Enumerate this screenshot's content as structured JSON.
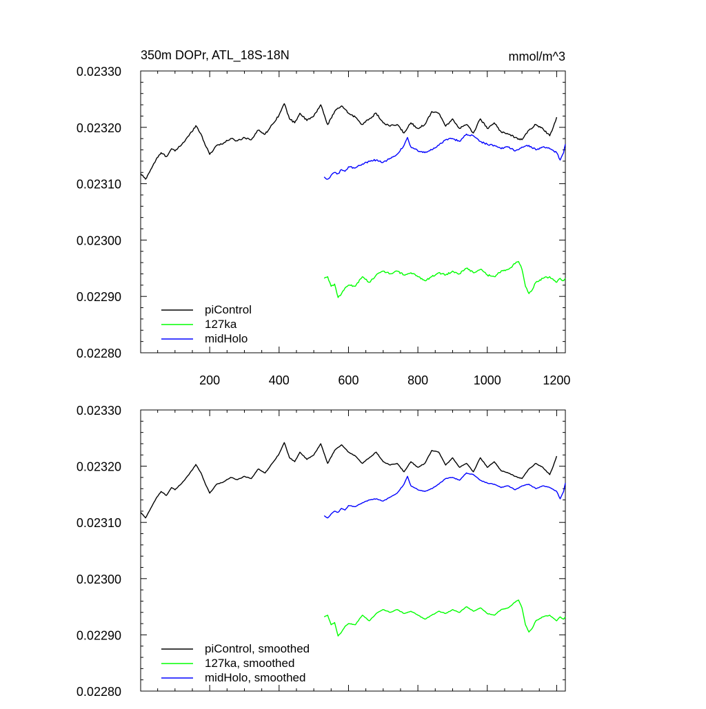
{
  "chart_data": [
    {
      "type": "line",
      "title": "350m DOPr, ATL_18S-18N",
      "units": "mmol/m^3",
      "xlabel": "",
      "ylabel": "",
      "xlim": [
        1,
        1225
      ],
      "ylim": [
        0.0228,
        0.0233
      ],
      "x_ticks": [
        200,
        400,
        600,
        800,
        1000,
        1200
      ],
      "x_tick_labels": [
        "200",
        "400",
        "600",
        "800",
        "1000",
        "1200"
      ],
      "y_ticks": [
        0.0228,
        0.0229,
        0.023,
        0.0231,
        0.0232,
        0.0233
      ],
      "y_tick_labels": [
        "0.02280",
        "0.02290",
        "0.02300",
        "0.02310",
        "0.02320",
        "0.02330"
      ],
      "legend_position": "bottom-left",
      "series": [
        {
          "name": "piControl",
          "color": "#000000",
          "x": [
            1,
            15,
            30,
            45,
            60,
            75,
            90,
            100,
            120,
            140,
            160,
            175,
            190,
            200,
            220,
            240,
            260,
            280,
            300,
            320,
            340,
            360,
            380,
            400,
            415,
            430,
            445,
            460,
            480,
            500,
            520,
            540,
            560,
            580,
            600,
            620,
            640,
            660,
            680,
            700,
            720,
            740,
            760,
            780,
            800,
            820,
            840,
            860,
            880,
            900,
            920,
            940,
            960,
            980,
            1000,
            1020,
            1040,
            1060,
            1080,
            1100,
            1120,
            1140,
            1160,
            1180,
            1190,
            1200
          ],
          "values": [
            0.023118,
            0.023108,
            0.023125,
            0.023142,
            0.023155,
            0.023148,
            0.023162,
            0.023158,
            0.02317,
            0.023185,
            0.023203,
            0.023188,
            0.023165,
            0.023152,
            0.023168,
            0.023172,
            0.02318,
            0.023176,
            0.023182,
            0.023178,
            0.023195,
            0.023188,
            0.023205,
            0.023222,
            0.023242,
            0.023215,
            0.023208,
            0.023225,
            0.023212,
            0.02322,
            0.02324,
            0.023205,
            0.023228,
            0.023238,
            0.023225,
            0.023218,
            0.023205,
            0.023215,
            0.023225,
            0.023208,
            0.023202,
            0.023205,
            0.02319,
            0.023208,
            0.023198,
            0.023205,
            0.023228,
            0.023225,
            0.023202,
            0.023215,
            0.023198,
            0.023205,
            0.02319,
            0.023215,
            0.023198,
            0.023208,
            0.023192,
            0.023188,
            0.023182,
            0.023178,
            0.023195,
            0.023205,
            0.023198,
            0.023185,
            0.0232,
            0.023218
          ]
        },
        {
          "name": "127ka",
          "color": "#00ff00",
          "x": [
            530,
            540,
            550,
            560,
            570,
            580,
            590,
            600,
            620,
            640,
            660,
            680,
            700,
            720,
            740,
            760,
            780,
            800,
            820,
            840,
            860,
            880,
            900,
            920,
            940,
            960,
            980,
            1000,
            1020,
            1040,
            1060,
            1080,
            1090,
            1100,
            1110,
            1120,
            1130,
            1140,
            1160,
            1180,
            1200,
            1210,
            1220,
            1225
          ],
          "values": [
            0.022932,
            0.022935,
            0.022918,
            0.022922,
            0.022898,
            0.022905,
            0.022915,
            0.02292,
            0.022918,
            0.022935,
            0.022925,
            0.022938,
            0.022945,
            0.02294,
            0.022945,
            0.022938,
            0.022942,
            0.022935,
            0.022928,
            0.022935,
            0.022942,
            0.022938,
            0.022945,
            0.02294,
            0.02295,
            0.022942,
            0.022948,
            0.022938,
            0.022935,
            0.022945,
            0.022948,
            0.022958,
            0.022962,
            0.022948,
            0.022918,
            0.022905,
            0.022912,
            0.022925,
            0.022932,
            0.022935,
            0.022925,
            0.022932,
            0.022928,
            0.022932
          ]
        },
        {
          "name": "midHolo",
          "color": "#0000ff",
          "x": [
            530,
            540,
            550,
            560,
            570,
            580,
            590,
            600,
            620,
            640,
            660,
            680,
            700,
            720,
            740,
            760,
            770,
            780,
            800,
            820,
            840,
            860,
            880,
            900,
            920,
            940,
            960,
            980,
            1000,
            1020,
            1040,
            1060,
            1080,
            1100,
            1120,
            1140,
            1160,
            1180,
            1200,
            1210,
            1220,
            1225
          ],
          "values": [
            0.023112,
            0.023108,
            0.023115,
            0.02312,
            0.023118,
            0.023125,
            0.023122,
            0.02313,
            0.023128,
            0.023135,
            0.02314,
            0.023142,
            0.023138,
            0.023145,
            0.023152,
            0.023168,
            0.023182,
            0.023165,
            0.023158,
            0.023155,
            0.02316,
            0.023168,
            0.023178,
            0.02318,
            0.023175,
            0.023188,
            0.023185,
            0.023175,
            0.02317,
            0.023168,
            0.023162,
            0.023165,
            0.023158,
            0.023165,
            0.023168,
            0.02316,
            0.023165,
            0.023162,
            0.023155,
            0.023142,
            0.023155,
            0.02317
          ]
        }
      ]
    },
    {
      "type": "line",
      "title": "",
      "xlabel": "",
      "ylabel": "",
      "xlim": [
        1,
        1225
      ],
      "ylim": [
        0.0228,
        0.0233
      ],
      "y_ticks": [
        0.0228,
        0.0229,
        0.023,
        0.0231,
        0.0232,
        0.0233
      ],
      "y_tick_labels": [
        "0.02280",
        "0.02290",
        "0.02300",
        "0.02310",
        "0.02320",
        "0.02330"
      ],
      "legend_position": "bottom-left",
      "series": [
        {
          "name": "piControl, smoothed",
          "color": "#000000",
          "x": [
            1,
            15,
            30,
            45,
            60,
            75,
            90,
            100,
            120,
            140,
            160,
            175,
            190,
            200,
            220,
            240,
            260,
            280,
            300,
            320,
            340,
            360,
            380,
            400,
            415,
            430,
            445,
            460,
            480,
            500,
            520,
            540,
            560,
            580,
            600,
            620,
            640,
            660,
            680,
            700,
            720,
            740,
            760,
            780,
            800,
            820,
            840,
            860,
            880,
            900,
            920,
            940,
            960,
            980,
            1000,
            1020,
            1040,
            1060,
            1080,
            1100,
            1120,
            1140,
            1160,
            1180,
            1190,
            1200
          ],
          "values": [
            0.023118,
            0.023108,
            0.023125,
            0.023142,
            0.023155,
            0.023148,
            0.023162,
            0.023158,
            0.02317,
            0.023185,
            0.023203,
            0.023188,
            0.023165,
            0.023152,
            0.023168,
            0.023172,
            0.02318,
            0.023176,
            0.023182,
            0.023178,
            0.023195,
            0.023188,
            0.023205,
            0.023222,
            0.023242,
            0.023215,
            0.023208,
            0.023225,
            0.023212,
            0.02322,
            0.02324,
            0.023205,
            0.023228,
            0.023238,
            0.023225,
            0.023218,
            0.023205,
            0.023215,
            0.023225,
            0.023208,
            0.023202,
            0.023205,
            0.02319,
            0.023208,
            0.023198,
            0.023205,
            0.023228,
            0.023225,
            0.023202,
            0.023215,
            0.023198,
            0.023205,
            0.02319,
            0.023215,
            0.023198,
            0.023208,
            0.023192,
            0.023188,
            0.023182,
            0.023178,
            0.023195,
            0.023205,
            0.023198,
            0.023185,
            0.0232,
            0.023218
          ]
        },
        {
          "name": "127ka, smoothed",
          "color": "#00ff00",
          "x": [
            530,
            540,
            550,
            560,
            570,
            580,
            590,
            600,
            620,
            640,
            660,
            680,
            700,
            720,
            740,
            760,
            780,
            800,
            820,
            840,
            860,
            880,
            900,
            920,
            940,
            960,
            980,
            1000,
            1020,
            1040,
            1060,
            1080,
            1090,
            1100,
            1110,
            1120,
            1130,
            1140,
            1160,
            1180,
            1200,
            1210,
            1220,
            1225
          ],
          "values": [
            0.022932,
            0.022935,
            0.022918,
            0.022922,
            0.022898,
            0.022905,
            0.022915,
            0.02292,
            0.022918,
            0.022935,
            0.022925,
            0.022938,
            0.022945,
            0.02294,
            0.022945,
            0.022938,
            0.022942,
            0.022935,
            0.022928,
            0.022935,
            0.022942,
            0.022938,
            0.022945,
            0.02294,
            0.02295,
            0.022942,
            0.022948,
            0.022938,
            0.022935,
            0.022945,
            0.022948,
            0.022958,
            0.022962,
            0.022948,
            0.022918,
            0.022905,
            0.022912,
            0.022925,
            0.022932,
            0.022935,
            0.022925,
            0.022932,
            0.022928,
            0.022932
          ]
        },
        {
          "name": "midHolo, smoothed",
          "color": "#0000ff",
          "x": [
            530,
            540,
            550,
            560,
            570,
            580,
            590,
            600,
            620,
            640,
            660,
            680,
            700,
            720,
            740,
            760,
            770,
            780,
            800,
            820,
            840,
            860,
            880,
            900,
            920,
            940,
            960,
            980,
            1000,
            1020,
            1040,
            1060,
            1080,
            1100,
            1120,
            1140,
            1160,
            1180,
            1200,
            1210,
            1220,
            1225
          ],
          "values": [
            0.023112,
            0.023108,
            0.023115,
            0.02312,
            0.023118,
            0.023125,
            0.023122,
            0.02313,
            0.023128,
            0.023135,
            0.02314,
            0.023142,
            0.023138,
            0.023145,
            0.023152,
            0.023168,
            0.023182,
            0.023165,
            0.023158,
            0.023155,
            0.02316,
            0.023168,
            0.023178,
            0.02318,
            0.023175,
            0.023188,
            0.023185,
            0.023175,
            0.02317,
            0.023168,
            0.023162,
            0.023165,
            0.023158,
            0.023165,
            0.023168,
            0.02316,
            0.023165,
            0.023162,
            0.023155,
            0.023142,
            0.023155,
            0.02317
          ]
        }
      ]
    }
  ]
}
